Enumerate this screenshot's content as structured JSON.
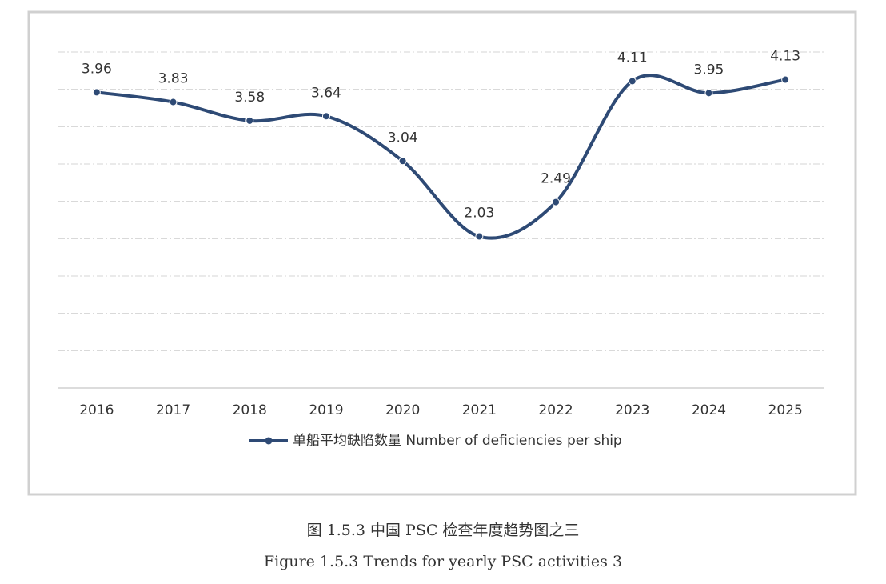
{
  "chart_data": {
    "type": "line",
    "categories": [
      "2016",
      "2017",
      "2018",
      "2019",
      "2020",
      "2021",
      "2022",
      "2023",
      "2024",
      "2025"
    ],
    "series": [
      {
        "name": "单船平均缺陷数量 Number of deficiencies per ship",
        "color": "#2e4a75",
        "values": [
          3.96,
          3.83,
          3.58,
          3.64,
          3.04,
          2.03,
          2.49,
          4.11,
          3.95,
          4.13
        ]
      }
    ],
    "ylim": [
      0,
      4.5
    ],
    "yticks": [
      0.5,
      1,
      1.5,
      2,
      2.5,
      3,
      3.5,
      4,
      4.5
    ],
    "grid": true,
    "legend": "bottom"
  },
  "caption_zh": "图 1.5.3 中国 PSC 检查年度趋势图之三",
  "caption_en": "Figure 1.5.3 Trends for yearly PSC activities 3"
}
